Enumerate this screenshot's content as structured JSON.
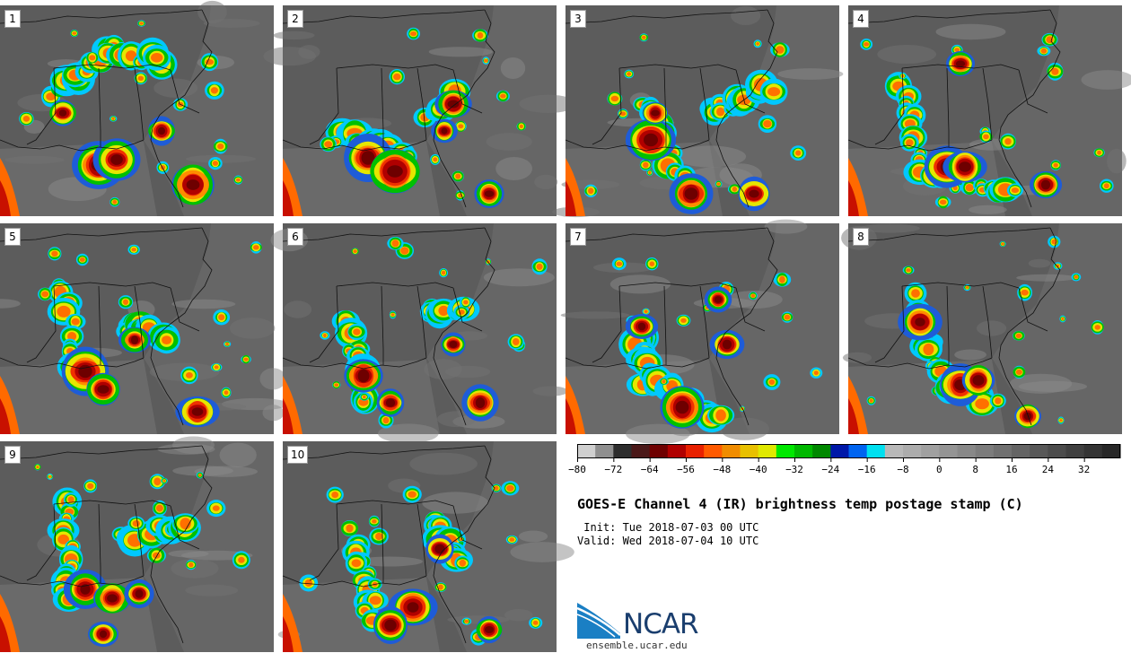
{
  "panels": [
    {
      "label": "1"
    },
    {
      "label": "2"
    },
    {
      "label": "3"
    },
    {
      "label": "4"
    },
    {
      "label": "5"
    },
    {
      "label": "6"
    },
    {
      "label": "7"
    },
    {
      "label": "8"
    },
    {
      "label": "9"
    },
    {
      "label": "10"
    }
  ],
  "colorbar": {
    "colors": [
      "#cfcfcf",
      "#8f8f8f",
      "#2d2d2d",
      "#4a1818",
      "#6e0000",
      "#b00000",
      "#e82000",
      "#ff5a00",
      "#f08c00",
      "#e8c000",
      "#e0e800",
      "#00e800",
      "#00b800",
      "#008800",
      "#0018a8",
      "#0064f0",
      "#00e0f0",
      "#b8b8b8",
      "#acacac",
      "#a0a0a0",
      "#949494",
      "#888888",
      "#7c7c7c",
      "#707070",
      "#646464",
      "#585858",
      "#4c4c4c",
      "#404040",
      "#343434",
      "#282828"
    ],
    "tick_labels": [
      "−80",
      "−72",
      "−64",
      "−56",
      "−48",
      "−40",
      "−32",
      "−24",
      "−16",
      "−8",
      "0",
      "8",
      "16",
      "24",
      "32"
    ]
  },
  "title": "GOES-E Channel 4 (IR) brightness temp postage stamp (C)",
  "init_line": " Init: Tue 2018-07-03 00 UTC",
  "valid_line": "Valid: Wed 2018-07-04 10 UTC",
  "logo_text": "NCAR",
  "url": "ensemble.ucar.edu"
}
